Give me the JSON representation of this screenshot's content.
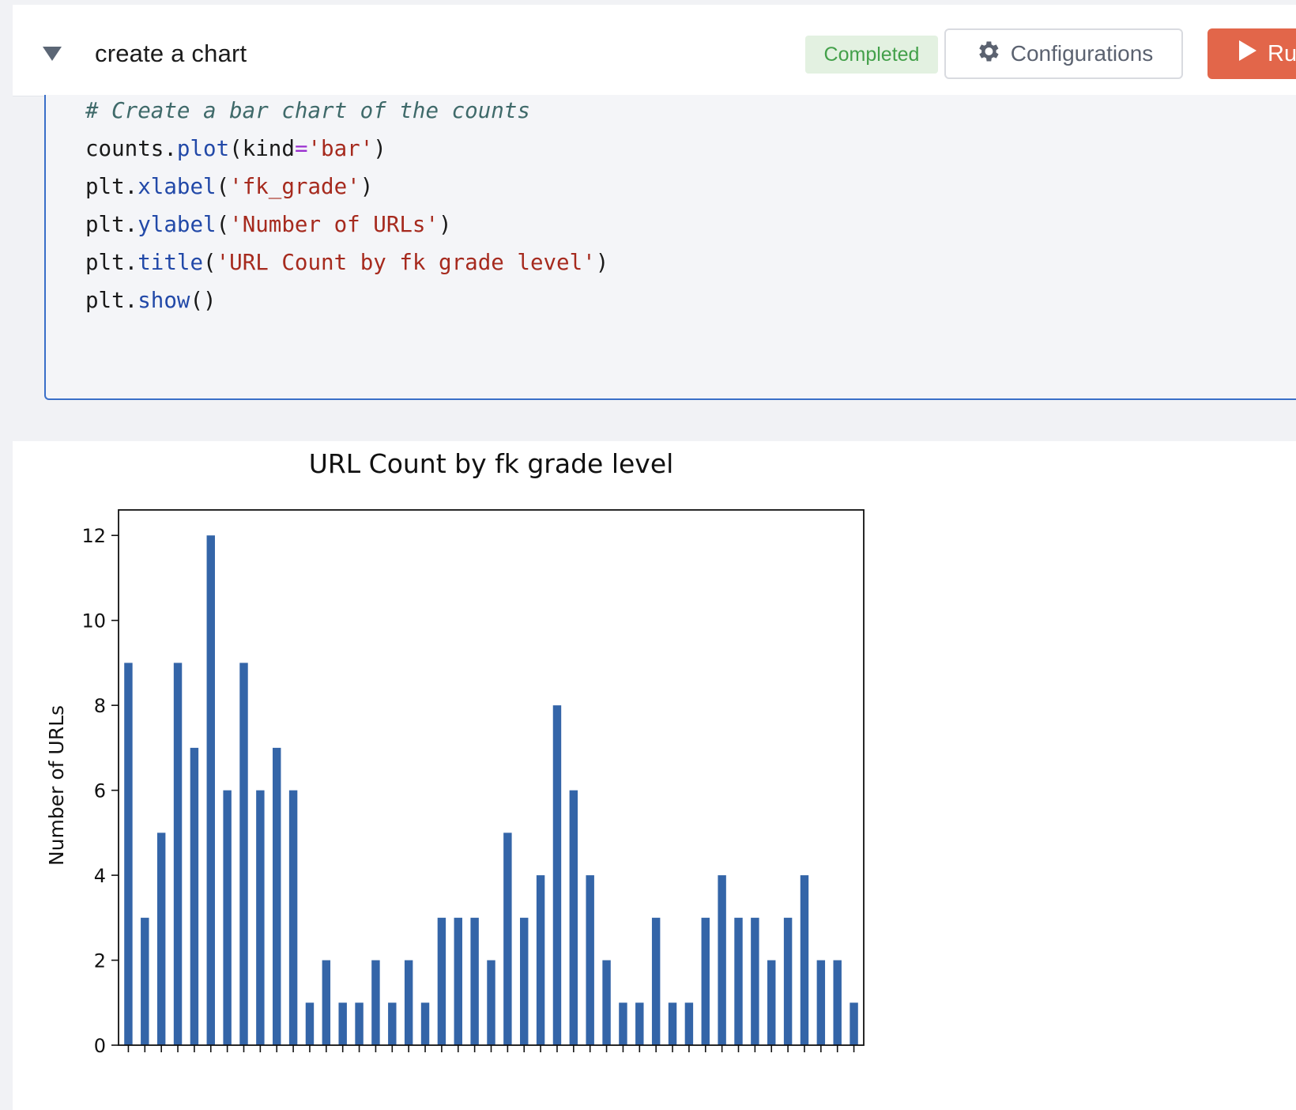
{
  "header": {
    "title": "create a chart",
    "status": "Completed",
    "config_label": "Configurations",
    "run_label": "Run"
  },
  "code": {
    "lines": [
      "# Create a bar chart of the counts",
      "counts.plot(kind='bar')",
      "plt.xlabel('fk_grade')",
      "plt.ylabel('Number of URLs')",
      "plt.title('URL Count by fk grade level')",
      "plt.show()"
    ],
    "tokens": [
      [
        {
          "t": "# Create a bar chart of the counts",
          "c": "comment"
        }
      ],
      [
        {
          "t": "counts.",
          "c": ""
        },
        {
          "t": "plot",
          "c": "fn"
        },
        {
          "t": "(kind",
          "c": ""
        },
        {
          "t": "=",
          "c": "op"
        },
        {
          "t": "'bar'",
          "c": "str"
        },
        {
          "t": ")",
          "c": ""
        }
      ],
      [
        {
          "t": "plt.",
          "c": ""
        },
        {
          "t": "xlabel",
          "c": "fn"
        },
        {
          "t": "(",
          "c": ""
        },
        {
          "t": "'fk_grade'",
          "c": "str"
        },
        {
          "t": ")",
          "c": ""
        }
      ],
      [
        {
          "t": "plt.",
          "c": ""
        },
        {
          "t": "ylabel",
          "c": "fn"
        },
        {
          "t": "(",
          "c": ""
        },
        {
          "t": "'Number of URLs'",
          "c": "str"
        },
        {
          "t": ")",
          "c": ""
        }
      ],
      [
        {
          "t": "plt.",
          "c": ""
        },
        {
          "t": "title",
          "c": "fn"
        },
        {
          "t": "(",
          "c": ""
        },
        {
          "t": "'URL Count by fk grade level'",
          "c": "str"
        },
        {
          "t": ")",
          "c": ""
        }
      ],
      [
        {
          "t": "plt.",
          "c": ""
        },
        {
          "t": "show",
          "c": "fn"
        },
        {
          "t": "()",
          "c": ""
        }
      ]
    ]
  },
  "icons": {
    "collapse": "triangle-down-icon",
    "config": "gear-icon",
    "run": "play-icon"
  },
  "colors": {
    "status_bg": "#e3f1e1",
    "status_text": "#43a04a",
    "run_bg": "#e2664a",
    "bar": "#3465a8",
    "editor_border": "#3a6fc8"
  },
  "chart_data": {
    "type": "bar",
    "title": "URL Count by fk grade level",
    "ylabel": "Number of URLs",
    "ylim": [
      0,
      12.6
    ],
    "yticks": [
      0,
      2,
      4,
      6,
      8,
      10,
      12
    ],
    "grid": false,
    "values": [
      9,
      3,
      5,
      9,
      7,
      12,
      6,
      9,
      6,
      7,
      6,
      1,
      2,
      1,
      1,
      2,
      1,
      2,
      1,
      3,
      3,
      3,
      2,
      5,
      3,
      4,
      8,
      6,
      4,
      2,
      1,
      1,
      3,
      1,
      1,
      3,
      4,
      3,
      3,
      2,
      3,
      4,
      2,
      2,
      1
    ]
  }
}
